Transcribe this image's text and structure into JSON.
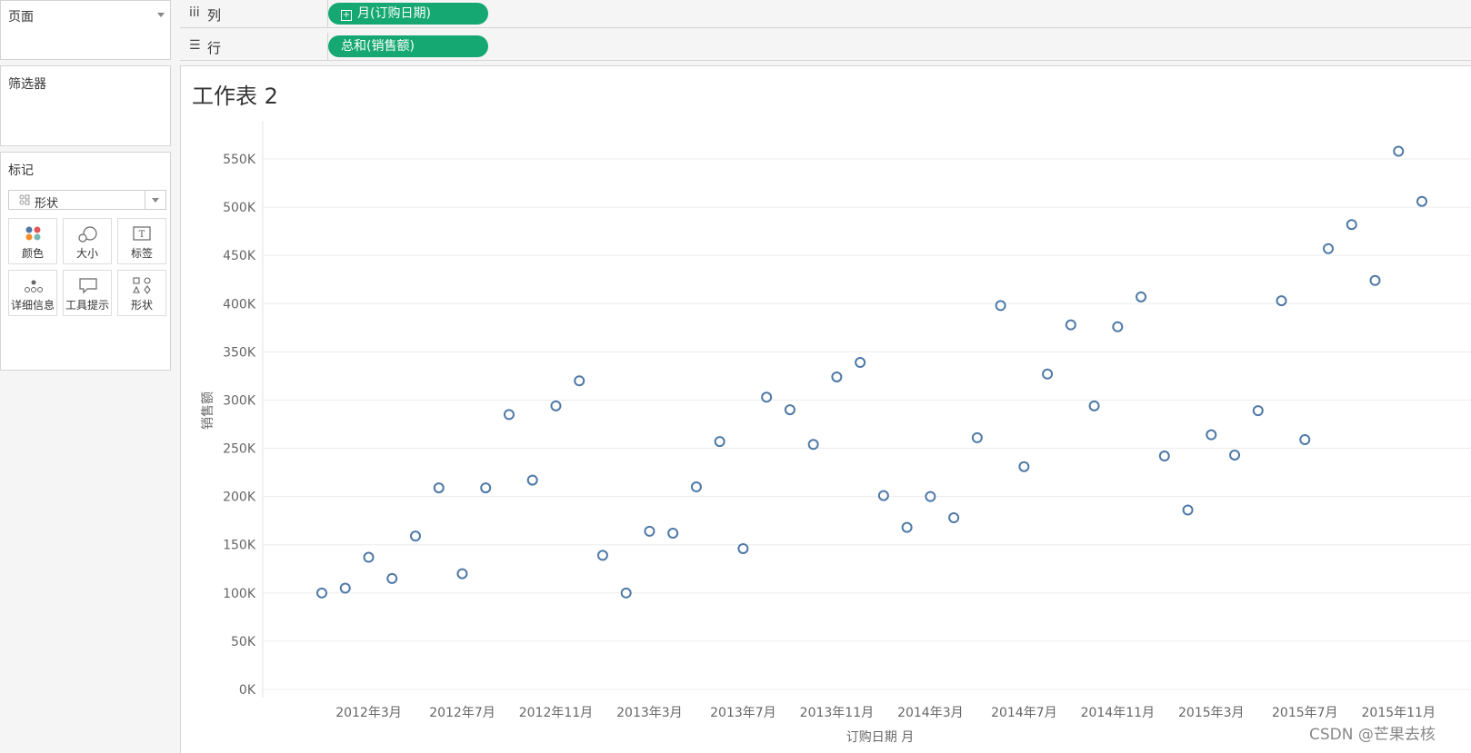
{
  "left_panel": {
    "pages_title": "页面",
    "filters_title": "筛选器",
    "marks_title": "标记",
    "mark_type": "形状",
    "mark_buttons": [
      {
        "label": "颜色",
        "icon": "color-icon"
      },
      {
        "label": "大小",
        "icon": "size-icon"
      },
      {
        "label": "标签",
        "icon": "label-icon"
      },
      {
        "label": "详细信息",
        "icon": "detail-icon"
      },
      {
        "label": "工具提示",
        "icon": "tooltip-icon"
      },
      {
        "label": "形状",
        "icon": "shape-icon"
      }
    ]
  },
  "shelves": {
    "columns": {
      "icon": "iii",
      "label": "列",
      "pill": "月(订购日期)"
    },
    "rows": {
      "icon": "☰",
      "label": "行",
      "pill": "总和(销售额)"
    }
  },
  "sheet": {
    "title": "工作表 2"
  },
  "watermark": "CSDN @芒果去核",
  "colors": {
    "pill": "#15a872",
    "mark": "#4e79a7",
    "grid": "#ececec"
  },
  "chart_data": {
    "type": "scatter",
    "marker": "hollow-circle",
    "xlabel": "订购日期 月",
    "ylabel": "销售额",
    "x_ticks": [
      "2012年3月",
      "2012年7月",
      "2012年11月",
      "2013年3月",
      "2013年7月",
      "2013年11月",
      "2014年3月",
      "2014年7月",
      "2014年11月",
      "2015年3月",
      "2015年7月",
      "2015年11月"
    ],
    "y_ticks": [
      "0K",
      "50K",
      "100K",
      "150K",
      "200K",
      "250K",
      "300K",
      "350K",
      "400K",
      "450K",
      "500K",
      "550K"
    ],
    "ylim": [
      0,
      580000
    ],
    "grid": "horizontal",
    "x": [
      "2012-01",
      "2012-02",
      "2012-03",
      "2012-04",
      "2012-05",
      "2012-06",
      "2012-07",
      "2012-08",
      "2012-09",
      "2012-10",
      "2012-11",
      "2012-12",
      "2013-01",
      "2013-02",
      "2013-03",
      "2013-04",
      "2013-05",
      "2013-06",
      "2013-07",
      "2013-08",
      "2013-09",
      "2013-10",
      "2013-11",
      "2013-12",
      "2014-01",
      "2014-02",
      "2014-03",
      "2014-04",
      "2014-05",
      "2014-06",
      "2014-07",
      "2014-08",
      "2014-09",
      "2014-10",
      "2014-11",
      "2014-12",
      "2015-01",
      "2015-02",
      "2015-03",
      "2015-04",
      "2015-05",
      "2015-06",
      "2015-07",
      "2015-08",
      "2015-09",
      "2015-10",
      "2015-11",
      "2015-12"
    ],
    "y": [
      100000,
      105000,
      137000,
      115000,
      159000,
      209000,
      120000,
      209000,
      285000,
      217000,
      294000,
      320000,
      139000,
      100000,
      164000,
      162000,
      210000,
      257000,
      146000,
      303000,
      290000,
      254000,
      324000,
      339000,
      201000,
      168000,
      200000,
      178000,
      261000,
      398000,
      231000,
      327000,
      378000,
      294000,
      376000,
      407000,
      242000,
      186000,
      264000,
      243000,
      289000,
      403000,
      259000,
      457000,
      482000,
      424000,
      558000,
      506000
    ]
  }
}
